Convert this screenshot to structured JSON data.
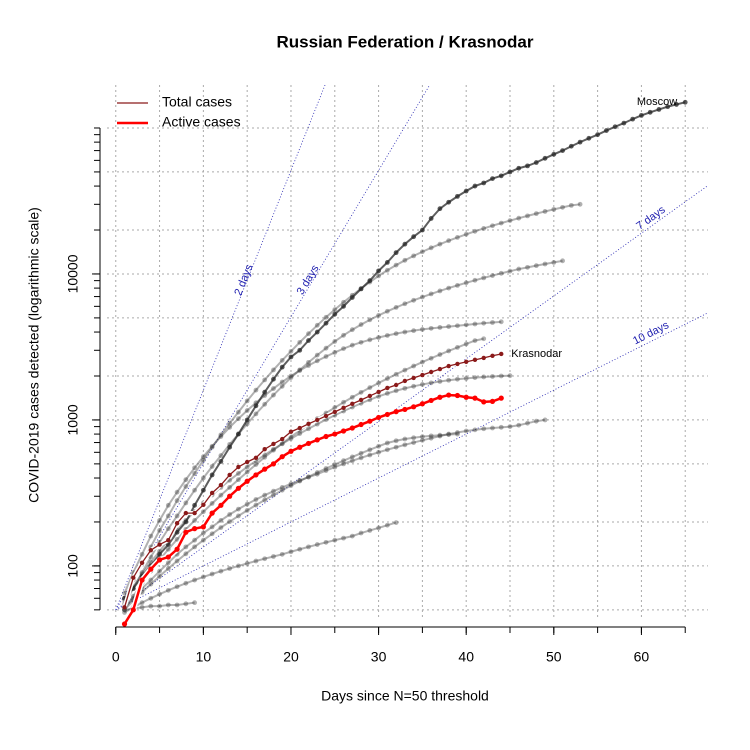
{
  "chart_data": {
    "type": "line",
    "title": "Russian Federation / Krasnodar",
    "x_label": "Days since N=50 threshold",
    "y_label": "COVID-2019 cases detected (logarithmic scale)",
    "log_y": true,
    "grid": true,
    "legend_position": "top-left",
    "xlim": [
      -1,
      67.6
    ],
    "ylim": [
      42.6,
      197000
    ],
    "xticks": [
      0,
      10,
      20,
      30,
      40,
      50,
      60
    ],
    "xminorticks": [
      0,
      5,
      10,
      15,
      20,
      25,
      30,
      35,
      40,
      45,
      50,
      55,
      60,
      65
    ],
    "yticks": [
      100,
      1000,
      10000
    ],
    "yminorticks": [
      50,
      60,
      70,
      80,
      90,
      100,
      200,
      300,
      400,
      500,
      600,
      700,
      800,
      900,
      1000,
      2000,
      3000,
      4000,
      5000,
      6000,
      7000,
      8000,
      9000,
      10000,
      20000,
      30000,
      40000,
      50000,
      60000,
      70000,
      80000,
      90000,
      100000
    ],
    "ygrid": [
      50,
      100,
      200,
      500,
      1000,
      2000,
      5000,
      10000,
      20000,
      50000,
      100000
    ],
    "threshold": 50,
    "reference_lines": [
      {
        "label": "2 days",
        "doubling_days": 2
      },
      {
        "label": "3 days",
        "doubling_days": 3
      },
      {
        "label": "7 days",
        "doubling_days": 7
      },
      {
        "label": "10 days",
        "doubling_days": 10
      }
    ],
    "reference_color": "#2020b0",
    "background_color": "rgba(60,60,60,0.4)",
    "background_series": [
      {
        "values": [
          55,
          70,
          90,
          115,
          145,
          180,
          220,
          270,
          330,
          400,
          480,
          570,
          680,
          800,
          940,
          1100,
          1280,
          1480,
          1700,
          1950,
          2200,
          2480,
          2780,
          3100,
          3450,
          3800,
          4150,
          4500,
          4850,
          5200,
          5550,
          5900,
          6250,
          6600,
          6950,
          7300,
          7650,
          8000,
          8350,
          8700,
          9050,
          9400,
          9750,
          10100,
          10450,
          10800,
          11100,
          11400,
          11700,
          12000,
          12300
        ]
      },
      {
        "values": [
          60,
          80,
          105,
          135,
          175,
          220,
          280,
          350,
          430,
          530,
          650,
          790,
          950,
          1130,
          1350,
          1600,
          1880,
          2200,
          2560,
          2950,
          3400,
          3900,
          4450,
          5050,
          5700,
          6400,
          7150,
          7950,
          8800,
          9700,
          10600,
          11500,
          12400,
          13300,
          14200,
          15100,
          16000,
          16900,
          17800,
          18700,
          19600,
          20500,
          21400,
          22300,
          23200,
          24100,
          25000,
          25900,
          26800,
          27700,
          28600,
          29500,
          30000
        ]
      },
      {
        "values": [
          50,
          62,
          76,
          92,
          110,
          130,
          152,
          178,
          205,
          235,
          268,
          305,
          345,
          390,
          440,
          495,
          555,
          620,
          690,
          765,
          845,
          930,
          1020,
          1115,
          1215,
          1320,
          1430,
          1545,
          1665,
          1790,
          1920,
          2055,
          2195,
          2340,
          2490,
          2645,
          2805,
          2970,
          3140,
          3315,
          3495,
          3600
        ]
      },
      {
        "values": [
          52,
          60,
          70,
          80,
          92,
          105,
          120,
          135,
          150,
          168,
          185,
          205,
          225,
          245,
          265,
          285,
          305,
          325,
          345,
          365,
          385,
          405,
          425,
          450,
          475,
          500,
          525,
          550,
          575,
          600,
          625,
          650,
          675,
          700,
          725,
          750,
          775,
          800,
          820,
          840,
          855,
          870,
          880,
          890,
          900,
          920,
          950,
          980,
          1000
        ]
      },
      {
        "values": [
          48,
          52,
          56,
          60,
          64,
          68,
          72,
          76,
          80,
          84,
          88,
          92,
          96,
          100,
          104,
          108,
          112,
          116,
          120,
          125,
          130,
          135,
          140,
          145,
          150,
          155,
          160,
          168,
          175,
          182,
          190,
          198
        ]
      },
      {
        "values": [
          50,
          51,
          52,
          53,
          53,
          54,
          54,
          55,
          56
        ]
      },
      {
        "values": [
          58,
          72,
          88,
          106,
          126,
          150,
          176,
          205,
          236,
          270,
          306,
          345,
          386,
          430,
          476,
          525,
          576,
          630,
          686,
          745,
          806,
          870,
          936,
          1005,
          1076,
          1150,
          1225,
          1300,
          1375,
          1450,
          1520,
          1585,
          1645,
          1700,
          1750,
          1795,
          1835,
          1870,
          1900,
          1925,
          1950,
          1970,
          1985,
          2000,
          2010
        ]
      },
      {
        "values": [
          65,
          90,
          120,
          160,
          205,
          260,
          320,
          390,
          470,
          560,
          660,
          770,
          890,
          1020,
          1160,
          1310,
          1470,
          1640,
          1820,
          2000,
          2180,
          2360,
          2540,
          2720,
          2900,
          3080,
          3250,
          3400,
          3540,
          3670,
          3790,
          3900,
          4000,
          4090,
          4170,
          4240,
          4300,
          4360,
          4420,
          4480,
          4540,
          4600,
          4650,
          4700
        ]
      },
      {
        "values": [
          50,
          58,
          66,
          75,
          85,
          96,
          108,
          121,
          135,
          150,
          166,
          183,
          201,
          220,
          240,
          261,
          283,
          306,
          330,
          355,
          381,
          408,
          436,
          465,
          495,
          526,
          558,
          591,
          625,
          660,
          695,
          720,
          740,
          755,
          768,
          778,
          786,
          794,
          800
        ]
      }
    ],
    "labeled_series": [
      {
        "label": "Moscow",
        "color": "rgba(40,40,40,0.75)",
        "values": [
          60,
          70,
          85,
          100,
          120,
          140,
          170,
          200,
          260,
          330,
          420,
          520,
          650,
          800,
          1000,
          1250,
          1550,
          1900,
          2300,
          2700,
          3000,
          3500,
          4000,
          4600,
          5300,
          6000,
          6900,
          7900,
          9000,
          10500,
          12000,
          14000,
          16000,
          18000,
          20000,
          24000,
          28000,
          31000,
          34000,
          37000,
          40000,
          42000,
          45000,
          47000,
          50000,
          53000,
          55000,
          58000,
          62000,
          66000,
          70000,
          75000,
          80000,
          85000,
          90000,
          96000,
          102000,
          108000,
          115000,
          122000,
          128000,
          134000,
          140000,
          145000,
          150000
        ]
      }
    ],
    "series": [
      {
        "name": "Total cases",
        "color": "#8b1a1a",
        "region_label": "Krasnodar",
        "values": [
          52,
          83,
          105,
          128,
          140,
          150,
          196,
          230,
          230,
          262,
          316,
          358,
          420,
          476,
          515,
          550,
          630,
          685,
          740,
          830,
          880,
          940,
          1000,
          1065,
          1135,
          1210,
          1290,
          1370,
          1460,
          1555,
          1655,
          1735,
          1850,
          1940,
          2030,
          2130,
          2230,
          2340,
          2420,
          2500,
          2580,
          2660,
          2750,
          2830
        ]
      },
      {
        "name": "Active cases",
        "color": "#ff0000",
        "values": [
          40,
          50,
          80,
          95,
          110,
          115,
          130,
          170,
          180,
          185,
          230,
          260,
          300,
          340,
          380,
          420,
          460,
          500,
          560,
          610,
          650,
          690,
          730,
          770,
          800,
          840,
          880,
          930,
          980,
          1040,
          1090,
          1140,
          1180,
          1230,
          1290,
          1360,
          1430,
          1480,
          1470,
          1430,
          1410,
          1330,
          1340,
          1410
        ]
      }
    ]
  }
}
